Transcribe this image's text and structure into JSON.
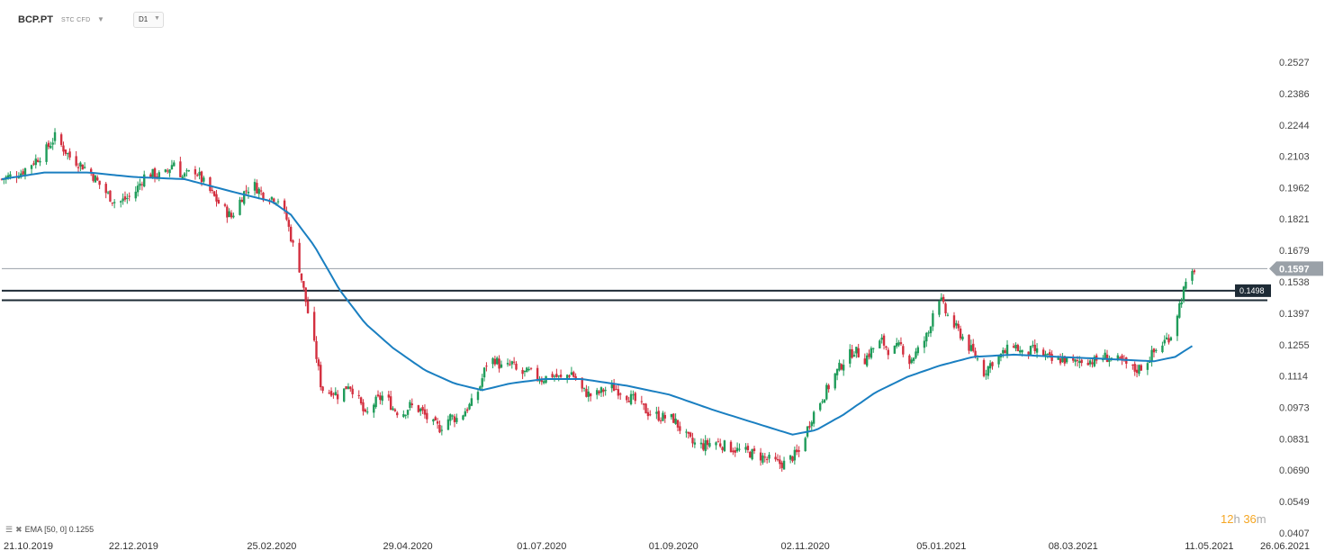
{
  "header": {
    "symbol": "BCP.PT",
    "symbol_type": "STC  CFD",
    "timeframe": "D1"
  },
  "legend": {
    "label": "EMA [50, 0] 0.1255",
    "icons": [
      "bars-icon",
      "close-icon"
    ]
  },
  "timer": {
    "hours": "12",
    "h": "h",
    "minutes": "36",
    "m": "m"
  },
  "colors": {
    "bull": "#1f9c5a",
    "bear": "#d32f3f",
    "ema": "#1a7fc1",
    "level_line": "#1e2b36",
    "price_tag": "#9aa1a8",
    "level_tag": "#1e2b36"
  },
  "chart_data": {
    "type": "candlestick",
    "title": "",
    "ylim": [
      0.0407,
      0.26
    ],
    "y_ticks": [
      "0.2527",
      "0.2386",
      "0.2244",
      "0.2103",
      "0.1962",
      "0.1821",
      "0.1679",
      "0.1538",
      "0.1397",
      "0.1255",
      "0.1114",
      "0.0973",
      "0.0831",
      "0.0690",
      "0.0549",
      "0.0407"
    ],
    "x_ticks": [
      "21.10.2019",
      "22.12.2019",
      "25.02.2020",
      "29.04.2020",
      "01.07.2020",
      "01.09.2020",
      "02.11.2020",
      "05.01.2021",
      "08.03.2021",
      "11.05.2021",
      "26.06.2021"
    ],
    "x_range": [
      "2019-10-21",
      "2021-06-26"
    ],
    "last_price": 0.1597,
    "last_price_label": "0.1597",
    "horizontal_levels": [
      {
        "value": 0.1498,
        "label": "0.1498"
      },
      {
        "value": 0.1455,
        "label": ""
      }
    ],
    "price_path": [
      [
        "2019-10-21",
        0.2
      ],
      [
        "2019-10-30",
        0.203
      ],
      [
        "2019-11-10",
        0.212
      ],
      [
        "2019-11-15",
        0.219
      ],
      [
        "2019-11-22",
        0.21
      ],
      [
        "2019-12-01",
        0.204
      ],
      [
        "2019-12-08",
        0.195
      ],
      [
        "2019-12-14",
        0.189
      ],
      [
        "2019-12-22",
        0.193
      ],
      [
        "2019-12-28",
        0.203
      ],
      [
        "2020-01-05",
        0.201
      ],
      [
        "2020-01-10",
        0.208
      ],
      [
        "2020-01-14",
        0.201
      ],
      [
        "2020-01-20",
        0.204
      ],
      [
        "2020-01-25",
        0.197
      ],
      [
        "2020-02-01",
        0.188
      ],
      [
        "2020-02-06",
        0.183
      ],
      [
        "2020-02-12",
        0.194
      ],
      [
        "2020-02-16",
        0.198
      ],
      [
        "2020-02-21",
        0.193
      ],
      [
        "2020-02-28",
        0.191
      ],
      [
        "2020-03-03",
        0.182
      ],
      [
        "2020-03-06",
        0.17
      ],
      [
        "2020-03-09",
        0.16
      ],
      [
        "2020-03-11",
        0.15
      ],
      [
        "2020-03-13",
        0.14
      ],
      [
        "2020-03-15",
        0.13
      ],
      [
        "2020-03-17",
        0.12
      ],
      [
        "2020-03-19",
        0.108
      ],
      [
        "2020-03-21",
        0.103
      ],
      [
        "2020-03-24",
        0.105
      ],
      [
        "2020-03-28",
        0.102
      ],
      [
        "2020-04-01",
        0.108
      ],
      [
        "2020-04-05",
        0.103
      ],
      [
        "2020-04-09",
        0.093
      ],
      [
        "2020-04-13",
        0.099
      ],
      [
        "2020-04-18",
        0.103
      ],
      [
        "2020-04-22",
        0.097
      ],
      [
        "2020-04-26",
        0.094
      ],
      [
        "2020-04-30",
        0.098
      ],
      [
        "2020-05-05",
        0.096
      ],
      [
        "2020-05-10",
        0.09
      ],
      [
        "2020-05-14",
        0.088
      ],
      [
        "2020-05-19",
        0.093
      ],
      [
        "2020-05-23",
        0.092
      ],
      [
        "2020-05-26",
        0.096
      ],
      [
        "2020-05-30",
        0.1
      ],
      [
        "2020-06-02",
        0.107
      ],
      [
        "2020-06-05",
        0.117
      ],
      [
        "2020-06-09",
        0.119
      ],
      [
        "2020-06-13",
        0.114
      ],
      [
        "2020-06-17",
        0.117
      ],
      [
        "2020-06-20",
        0.112
      ],
      [
        "2020-06-25",
        0.113
      ],
      [
        "2020-07-01",
        0.11
      ],
      [
        "2020-07-06",
        0.112
      ],
      [
        "2020-07-10",
        0.11
      ],
      [
        "2020-07-15",
        0.113
      ],
      [
        "2020-07-20",
        0.105
      ],
      [
        "2020-07-25",
        0.102
      ],
      [
        "2020-07-30",
        0.105
      ],
      [
        "2020-08-04",
        0.106
      ],
      [
        "2020-08-08",
        0.104
      ],
      [
        "2020-08-14",
        0.1
      ],
      [
        "2020-08-20",
        0.095
      ],
      [
        "2020-08-26",
        0.093
      ],
      [
        "2020-09-01",
        0.092
      ],
      [
        "2020-09-06",
        0.085
      ],
      [
        "2020-09-10",
        0.081
      ],
      [
        "2020-09-15",
        0.08
      ],
      [
        "2020-09-20",
        0.082
      ],
      [
        "2020-09-25",
        0.08
      ],
      [
        "2020-10-01",
        0.078
      ],
      [
        "2020-10-06",
        0.077
      ],
      [
        "2020-10-10",
        0.076
      ],
      [
        "2020-10-15",
        0.074
      ],
      [
        "2020-10-20",
        0.072
      ],
      [
        "2020-10-23",
        0.072
      ],
      [
        "2020-10-27",
        0.075
      ],
      [
        "2020-10-30",
        0.077
      ],
      [
        "2020-11-02",
        0.085
      ],
      [
        "2020-11-05",
        0.093
      ],
      [
        "2020-11-09",
        0.1
      ],
      [
        "2020-11-12",
        0.105
      ],
      [
        "2020-11-16",
        0.112
      ],
      [
        "2020-11-20",
        0.118
      ],
      [
        "2020-11-25",
        0.123
      ],
      [
        "2020-11-30",
        0.119
      ],
      [
        "2020-12-04",
        0.124
      ],
      [
        "2020-12-08",
        0.127
      ],
      [
        "2020-12-12",
        0.122
      ],
      [
        "2020-12-17",
        0.125
      ],
      [
        "2020-12-21",
        0.118
      ],
      [
        "2020-12-26",
        0.124
      ],
      [
        "2020-12-30",
        0.131
      ],
      [
        "2021-01-02",
        0.145
      ],
      [
        "2021-01-04",
        0.147
      ],
      [
        "2021-01-07",
        0.14
      ],
      [
        "2021-01-11",
        0.134
      ],
      [
        "2021-01-15",
        0.129
      ],
      [
        "2021-01-19",
        0.123
      ],
      [
        "2021-01-22",
        0.119
      ],
      [
        "2021-01-25",
        0.113
      ],
      [
        "2021-01-29",
        0.118
      ],
      [
        "2021-02-04",
        0.122
      ],
      [
        "2021-02-08",
        0.126
      ],
      [
        "2021-02-12",
        0.121
      ],
      [
        "2021-02-17",
        0.123
      ],
      [
        "2021-02-22",
        0.121
      ],
      [
        "2021-02-26",
        0.118
      ],
      [
        "2021-03-03",
        0.119
      ],
      [
        "2021-03-08",
        0.117
      ],
      [
        "2021-03-13",
        0.119
      ],
      [
        "2021-03-18",
        0.118
      ],
      [
        "2021-03-23",
        0.12
      ],
      [
        "2021-03-27",
        0.119
      ],
      [
        "2021-04-01",
        0.117
      ],
      [
        "2021-04-06",
        0.114
      ],
      [
        "2021-04-10",
        0.116
      ],
      [
        "2021-04-14",
        0.121
      ],
      [
        "2021-04-18",
        0.125
      ],
      [
        "2021-04-23",
        0.13
      ],
      [
        "2021-04-26",
        0.14
      ],
      [
        "2021-04-29",
        0.15
      ],
      [
        "2021-05-02",
        0.155
      ],
      [
        "2021-05-04",
        0.1597
      ]
    ],
    "ema_path": [
      [
        "2019-10-21",
        0.2
      ],
      [
        "2019-11-10",
        0.203
      ],
      [
        "2019-12-01",
        0.203
      ],
      [
        "2019-12-22",
        0.201
      ],
      [
        "2020-01-15",
        0.2
      ],
      [
        "2020-02-08",
        0.194
      ],
      [
        "2020-02-25",
        0.19
      ],
      [
        "2020-03-05",
        0.184
      ],
      [
        "2020-03-16",
        0.17
      ],
      [
        "2020-03-28",
        0.15
      ],
      [
        "2020-04-09",
        0.135
      ],
      [
        "2020-04-22",
        0.124
      ],
      [
        "2020-05-07",
        0.114
      ],
      [
        "2020-05-21",
        0.108
      ],
      [
        "2020-06-03",
        0.105
      ],
      [
        "2020-06-16",
        0.108
      ],
      [
        "2020-07-02",
        0.11
      ],
      [
        "2020-07-20",
        0.11
      ],
      [
        "2020-08-10",
        0.107
      ],
      [
        "2020-08-30",
        0.103
      ],
      [
        "2020-09-20",
        0.096
      ],
      [
        "2020-10-10",
        0.09
      ],
      [
        "2020-10-27",
        0.085
      ],
      [
        "2020-11-07",
        0.087
      ],
      [
        "2020-11-20",
        0.094
      ],
      [
        "2020-12-05",
        0.104
      ],
      [
        "2020-12-20",
        0.111
      ],
      [
        "2021-01-04",
        0.116
      ],
      [
        "2021-01-20",
        0.12
      ],
      [
        "2021-02-08",
        0.121
      ],
      [
        "2021-03-01",
        0.12
      ],
      [
        "2021-03-25",
        0.119
      ],
      [
        "2021-04-15",
        0.118
      ],
      [
        "2021-04-25",
        0.12
      ],
      [
        "2021-05-04",
        0.1255
      ]
    ]
  }
}
